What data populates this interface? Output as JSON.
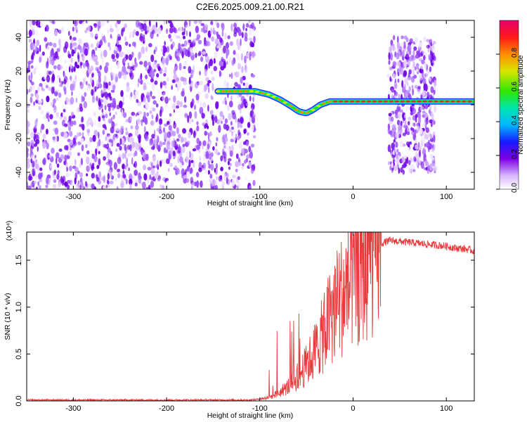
{
  "title": "C2E6.2025.009.21.00.R21",
  "chart_data": [
    {
      "type": "heatmap",
      "xlabel": "Height of straight line (km)",
      "ylabel": "Frequency (Hz)",
      "xlim": [
        -350,
        130
      ],
      "ylim": [
        -50,
        50
      ],
      "xticks": [
        -300,
        -200,
        -100,
        0,
        100
      ],
      "yticks": [
        -40,
        -20,
        0,
        20,
        40
      ],
      "colorbar": {
        "label": "Normalized spectral amplitude",
        "range": [
          0,
          1
        ],
        "ticks": [
          "0.0",
          "0.2",
          "0.4",
          "0.6",
          "0.8"
        ]
      },
      "noise_regions": [
        {
          "x": [
            -350,
            -105
          ],
          "y": [
            -50,
            50
          ]
        },
        {
          "x": [
            38,
            88
          ],
          "y": [
            -40,
            40
          ]
        }
      ],
      "ridge": {
        "x": [
          -145,
          -120,
          -105,
          -90,
          -78,
          -66,
          -58,
          -50,
          -43,
          -35,
          -25,
          -10,
          0,
          20,
          40,
          60,
          80,
          100,
          130
        ],
        "y": [
          8,
          8,
          8,
          6,
          3,
          -1,
          -4,
          -5,
          -3,
          0,
          2,
          2,
          2,
          2,
          2,
          2,
          2,
          2,
          2
        ]
      }
    },
    {
      "type": "line",
      "xlabel": "Height of straight line (km)",
      "ylabel": "SNR (10 * v/v)",
      "y_multiplier": "(x10⁴)",
      "xlim": [
        -350,
        130
      ],
      "ylim": [
        0,
        1.8
      ],
      "xticks": [
        -300,
        -200,
        -100,
        0,
        100
      ],
      "yticks": [
        "0.0",
        "0.5",
        "1.0",
        "1.5"
      ],
      "series": [
        {
          "color": "#e8393b",
          "x": [
            -350,
            -300,
            -250,
            -200,
            -150,
            -110,
            -100,
            -90,
            -80,
            -70,
            -60,
            -50,
            -40,
            -30,
            -25,
            -20,
            -15,
            -10,
            -5,
            0,
            10,
            20,
            30,
            40,
            50,
            60,
            70,
            80,
            90,
            100,
            110,
            120,
            130
          ],
          "y": [
            0.01,
            0.01,
            0.01,
            0.01,
            0.01,
            0.01,
            0.02,
            0.04,
            0.08,
            0.15,
            0.25,
            0.38,
            0.55,
            0.75,
            0.9,
            1.0,
            1.08,
            1.15,
            1.2,
            1.3,
            1.45,
            1.6,
            1.68,
            1.71,
            1.7,
            1.69,
            1.68,
            1.67,
            1.66,
            1.65,
            1.63,
            1.62,
            1.6
          ]
        }
      ]
    }
  ]
}
